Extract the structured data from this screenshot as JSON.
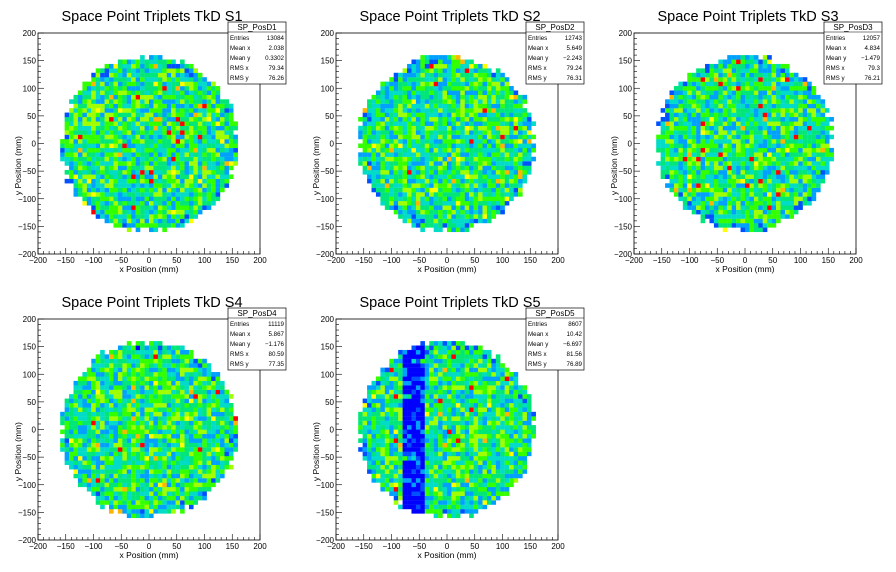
{
  "chart_data": [
    {
      "type": "heatmap",
      "title": "Space Point Triplets TkD S1",
      "xlabel": "x Position (mm)",
      "ylabel": "y Position (mm)",
      "xlim": [
        -200,
        200
      ],
      "ylim": [
        -200,
        200
      ],
      "xticks": [
        "−200",
        "−150",
        "−100",
        "−50",
        "0",
        "50",
        "100",
        "150",
        "200"
      ],
      "yticks": [
        "200",
        "150",
        "100",
        "50",
        "0",
        "−50",
        "−100",
        "−150",
        "−200"
      ],
      "stats": {
        "name": "SP_PosD1",
        "rows": [
          {
            "label": "Entries",
            "value": "13084"
          },
          {
            "label": "Mean x",
            "value": "2.038"
          },
          {
            "label": "Mean y",
            "value": "0.3302"
          },
          {
            "label": "RMS x",
            "value": "79.34"
          },
          {
            "label": "RMS y",
            "value": "76.26"
          }
        ]
      },
      "disk_radius_mm": 160,
      "bin_width_mm": 8
    },
    {
      "type": "heatmap",
      "title": "Space Point Triplets TkD S2",
      "xlabel": "x Position (mm)",
      "ylabel": "y Position (mm)",
      "xlim": [
        -200,
        200
      ],
      "ylim": [
        -200,
        200
      ],
      "xticks": [
        "−200",
        "−150",
        "−100",
        "−50",
        "0",
        "50",
        "100",
        "150",
        "200"
      ],
      "yticks": [
        "200",
        "150",
        "100",
        "50",
        "0",
        "−50",
        "−100",
        "−150",
        "−200"
      ],
      "stats": {
        "name": "SP_PosD2",
        "rows": [
          {
            "label": "Entries",
            "value": "12743"
          },
          {
            "label": "Mean x",
            "value": "5.649"
          },
          {
            "label": "Mean y",
            "value": "−2.243"
          },
          {
            "label": "RMS x",
            "value": "79.24"
          },
          {
            "label": "RMS y",
            "value": "76.31"
          }
        ]
      },
      "disk_radius_mm": 160,
      "bin_width_mm": 8
    },
    {
      "type": "heatmap",
      "title": "Space Point Triplets TkD S3",
      "xlabel": "x Position (mm)",
      "ylabel": "y Position (mm)",
      "xlim": [
        -200,
        200
      ],
      "ylim": [
        -200,
        200
      ],
      "xticks": [
        "−200",
        "−150",
        "−100",
        "−50",
        "0",
        "50",
        "100",
        "150",
        "200"
      ],
      "yticks": [
        "200",
        "150",
        "100",
        "50",
        "0",
        "−50",
        "−100",
        "−150",
        "−200"
      ],
      "stats": {
        "name": "SP_PosD3",
        "rows": [
          {
            "label": "Entries",
            "value": "12057"
          },
          {
            "label": "Mean x",
            "value": "4.834"
          },
          {
            "label": "Mean y",
            "value": "−1.479"
          },
          {
            "label": "RMS x",
            "value": "79.3"
          },
          {
            "label": "RMS y",
            "value": "76.21"
          }
        ]
      },
      "disk_radius_mm": 160,
      "bin_width_mm": 8
    },
    {
      "type": "heatmap",
      "title": "Space Point Triplets TkD S4",
      "xlabel": "x Position (mm)",
      "ylabel": "y Position (mm)",
      "xlim": [
        -200,
        200
      ],
      "ylim": [
        -200,
        200
      ],
      "xticks": [
        "−200",
        "−150",
        "−100",
        "−50",
        "0",
        "50",
        "100",
        "150",
        "200"
      ],
      "yticks": [
        "200",
        "150",
        "100",
        "50",
        "0",
        "−50",
        "−100",
        "−150",
        "−200"
      ],
      "stats": {
        "name": "SP_PosD4",
        "rows": [
          {
            "label": "Entries",
            "value": "11119"
          },
          {
            "label": "Mean x",
            "value": "5.867"
          },
          {
            "label": "Mean y",
            "value": "−1.176"
          },
          {
            "label": "RMS x",
            "value": "80.59"
          },
          {
            "label": "RMS y",
            "value": "77.35"
          }
        ]
      },
      "disk_radius_mm": 160,
      "bin_width_mm": 8
    },
    {
      "type": "heatmap",
      "title": "Space Point Triplets TkD S5",
      "xlabel": "x Position (mm)",
      "ylabel": "y Position (mm)",
      "xlim": [
        -200,
        200
      ],
      "ylim": [
        -200,
        200
      ],
      "xticks": [
        "−200",
        "−150",
        "−100",
        "−50",
        "0",
        "50",
        "100",
        "150",
        "200"
      ],
      "yticks": [
        "200",
        "150",
        "100",
        "50",
        "0",
        "−50",
        "−100",
        "−150",
        "−200"
      ],
      "stats": {
        "name": "SP_PosD5",
        "rows": [
          {
            "label": "Entries",
            "value": "8607"
          },
          {
            "label": "Mean x",
            "value": "10.42"
          },
          {
            "label": "Mean y",
            "value": "−6.697"
          },
          {
            "label": "RMS x",
            "value": "81.56"
          },
          {
            "label": "RMS y",
            "value": "76.89"
          }
        ]
      },
      "disk_radius_mm": 160,
      "bin_width_mm": 8,
      "low_occupancy_x_range_mm": [
        -80,
        -40
      ]
    }
  ],
  "colors": {
    "palette": [
      "#0000ff",
      "#0050ff",
      "#00a0ff",
      "#00dcc8",
      "#00e678",
      "#32ff00",
      "#a0ff00",
      "#ffff00",
      "#ffb400",
      "#ff0000"
    ],
    "frame": "#000000",
    "background": "#ffffff"
  }
}
